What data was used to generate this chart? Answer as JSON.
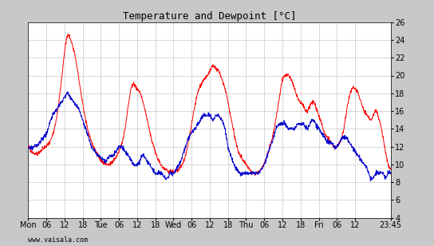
{
  "title": "Temperature and Dewpoint [°C]",
  "yticks": [
    4,
    6,
    8,
    10,
    12,
    14,
    16,
    18,
    20,
    22,
    24,
    26
  ],
  "ylim": [
    4,
    26
  ],
  "xlim_hours": 119.75,
  "xtick_labels": [
    "Mon",
    "06",
    "12",
    "18",
    "Tue",
    "06",
    "12",
    "18",
    "Wed",
    "06",
    "12",
    "18",
    "Thu",
    "06",
    "12",
    "18",
    "Fri",
    "06",
    "12",
    "23:45"
  ],
  "xtick_positions": [
    0,
    6,
    12,
    18,
    24,
    30,
    36,
    42,
    48,
    54,
    60,
    66,
    72,
    78,
    84,
    90,
    96,
    102,
    108,
    119.75
  ],
  "temp_color": "#ff0000",
  "dewpoint_color": "#0000cc",
  "bg_color": "#ffffff",
  "grid_color": "#c8c8c8",
  "outer_bg": "#c8c8c8",
  "watermark": "www.vaisala.com",
  "linewidth": 0.7,
  "temp_cp": [
    [
      0,
      12.0
    ],
    [
      1,
      11.5
    ],
    [
      3,
      11.2
    ],
    [
      5,
      11.8
    ],
    [
      7,
      12.5
    ],
    [
      9,
      14.5
    ],
    [
      11,
      19.5
    ],
    [
      13,
      24.5
    ],
    [
      14,
      24.0
    ],
    [
      15,
      23.0
    ],
    [
      17,
      19.0
    ],
    [
      19,
      15.0
    ],
    [
      21,
      12.5
    ],
    [
      23,
      11.0
    ],
    [
      24,
      10.5
    ],
    [
      26,
      10.0
    ],
    [
      28,
      10.3
    ],
    [
      30,
      11.5
    ],
    [
      32,
      14.0
    ],
    [
      34,
      18.5
    ],
    [
      35,
      19.0
    ],
    [
      36,
      18.5
    ],
    [
      37,
      18.0
    ],
    [
      39,
      15.5
    ],
    [
      41,
      12.5
    ],
    [
      43,
      10.5
    ],
    [
      45,
      9.5
    ],
    [
      47,
      9.2
    ],
    [
      48,
      9.2
    ],
    [
      50,
      9.5
    ],
    [
      52,
      11.0
    ],
    [
      54,
      14.5
    ],
    [
      56,
      18.0
    ],
    [
      58,
      19.5
    ],
    [
      60,
      20.5
    ],
    [
      61,
      21.0
    ],
    [
      62,
      20.8
    ],
    [
      63,
      20.5
    ],
    [
      64,
      19.5
    ],
    [
      65,
      18.5
    ],
    [
      66,
      17.0
    ],
    [
      68,
      13.5
    ],
    [
      70,
      11.0
    ],
    [
      71,
      10.5
    ],
    [
      72,
      10.0
    ],
    [
      73,
      9.5
    ],
    [
      75,
      9.0
    ],
    [
      77,
      9.5
    ],
    [
      79,
      11.0
    ],
    [
      81,
      13.5
    ],
    [
      83,
      17.5
    ],
    [
      84,
      19.5
    ],
    [
      85,
      20.0
    ],
    [
      86,
      20.0
    ],
    [
      87,
      19.5
    ],
    [
      88,
      18.5
    ],
    [
      89,
      17.5
    ],
    [
      90,
      17.0
    ],
    [
      91,
      16.5
    ],
    [
      92,
      16.0
    ],
    [
      93,
      16.5
    ],
    [
      94,
      17.0
    ],
    [
      95,
      16.5
    ],
    [
      96,
      15.5
    ],
    [
      97,
      14.5
    ],
    [
      98,
      13.5
    ],
    [
      99,
      13.0
    ],
    [
      100,
      12.5
    ],
    [
      101,
      12.0
    ],
    [
      102,
      12.0
    ],
    [
      103,
      12.5
    ],
    [
      104,
      13.5
    ],
    [
      105,
      15.5
    ],
    [
      106,
      17.5
    ],
    [
      107,
      18.5
    ],
    [
      108,
      18.5
    ],
    [
      109,
      18.0
    ],
    [
      110,
      17.0
    ],
    [
      111,
      16.0
    ],
    [
      112,
      15.5
    ],
    [
      113,
      15.0
    ],
    [
      114,
      15.5
    ],
    [
      115,
      16.0
    ],
    [
      116,
      15.0
    ],
    [
      117,
      13.5
    ],
    [
      118,
      11.5
    ],
    [
      119,
      10.0
    ],
    [
      119.75,
      9.5
    ]
  ],
  "dew_cp": [
    [
      0,
      12.0
    ],
    [
      1,
      11.8
    ],
    [
      2,
      12.0
    ],
    [
      3,
      12.2
    ],
    [
      4,
      12.5
    ],
    [
      5,
      13.0
    ],
    [
      6,
      13.5
    ],
    [
      7,
      14.5
    ],
    [
      8,
      15.5
    ],
    [
      9,
      16.0
    ],
    [
      10,
      16.5
    ],
    [
      11,
      17.0
    ],
    [
      12,
      17.5
    ],
    [
      13,
      18.0
    ],
    [
      14,
      17.5
    ],
    [
      15,
      17.0
    ],
    [
      16,
      16.5
    ],
    [
      17,
      16.0
    ],
    [
      18,
      15.0
    ],
    [
      19,
      14.0
    ],
    [
      20,
      13.0
    ],
    [
      21,
      12.0
    ],
    [
      22,
      11.5
    ],
    [
      23,
      11.0
    ],
    [
      24,
      10.8
    ],
    [
      25,
      10.5
    ],
    [
      26,
      10.5
    ],
    [
      27,
      11.0
    ],
    [
      28,
      11.0
    ],
    [
      29,
      11.5
    ],
    [
      30,
      12.0
    ],
    [
      31,
      12.0
    ],
    [
      32,
      11.5
    ],
    [
      33,
      11.0
    ],
    [
      34,
      10.5
    ],
    [
      35,
      10.0
    ],
    [
      36,
      10.0
    ],
    [
      37,
      10.5
    ],
    [
      38,
      11.0
    ],
    [
      39,
      10.5
    ],
    [
      40,
      10.0
    ],
    [
      41,
      9.5
    ],
    [
      42,
      9.0
    ],
    [
      43,
      9.0
    ],
    [
      44,
      9.0
    ],
    [
      45,
      8.5
    ],
    [
      46,
      8.5
    ],
    [
      47,
      9.0
    ],
    [
      48,
      9.0
    ],
    [
      49,
      9.5
    ],
    [
      50,
      10.0
    ],
    [
      51,
      11.0
    ],
    [
      52,
      12.0
    ],
    [
      53,
      13.0
    ],
    [
      54,
      13.5
    ],
    [
      55,
      14.0
    ],
    [
      56,
      14.5
    ],
    [
      57,
      15.0
    ],
    [
      58,
      15.5
    ],
    [
      59,
      15.5
    ],
    [
      60,
      15.5
    ],
    [
      61,
      15.0
    ],
    [
      62,
      15.5
    ],
    [
      63,
      15.5
    ],
    [
      64,
      15.0
    ],
    [
      65,
      14.0
    ],
    [
      66,
      12.0
    ],
    [
      67,
      11.0
    ],
    [
      68,
      10.0
    ],
    [
      69,
      9.5
    ],
    [
      70,
      9.0
    ],
    [
      71,
      9.0
    ],
    [
      72,
      9.0
    ],
    [
      73,
      9.0
    ],
    [
      74,
      9.0
    ],
    [
      75,
      9.0
    ],
    [
      76,
      9.0
    ],
    [
      77,
      9.5
    ],
    [
      78,
      10.0
    ],
    [
      79,
      11.0
    ],
    [
      80,
      12.0
    ],
    [
      81,
      13.0
    ],
    [
      82,
      14.0
    ],
    [
      83,
      14.5
    ],
    [
      84,
      14.5
    ],
    [
      85,
      14.5
    ],
    [
      86,
      14.0
    ],
    [
      87,
      14.0
    ],
    [
      88,
      14.0
    ],
    [
      89,
      14.5
    ],
    [
      90,
      14.5
    ],
    [
      91,
      14.5
    ],
    [
      92,
      14.0
    ],
    [
      93,
      14.5
    ],
    [
      94,
      15.0
    ],
    [
      95,
      14.5
    ],
    [
      96,
      14.0
    ],
    [
      97,
      13.5
    ],
    [
      98,
      13.0
    ],
    [
      99,
      12.5
    ],
    [
      100,
      12.5
    ],
    [
      101,
      12.0
    ],
    [
      102,
      12.0
    ],
    [
      103,
      12.5
    ],
    [
      104,
      13.0
    ],
    [
      105,
      13.0
    ],
    [
      106,
      12.5
    ],
    [
      107,
      12.0
    ],
    [
      108,
      11.5
    ],
    [
      109,
      11.0
    ],
    [
      110,
      10.5
    ],
    [
      111,
      10.0
    ],
    [
      112,
      9.5
    ],
    [
      113,
      8.5
    ],
    [
      114,
      8.5
    ],
    [
      115,
      9.0
    ],
    [
      116,
      9.0
    ],
    [
      117,
      9.0
    ],
    [
      118,
      8.5
    ],
    [
      119,
      9.0
    ],
    [
      119.75,
      9.0
    ]
  ]
}
